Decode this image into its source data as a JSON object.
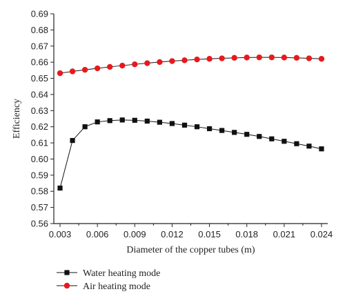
{
  "colors": {
    "water_series": "#111111",
    "air_series": "#e8191d",
    "axis": "#222222"
  },
  "chart_data": {
    "type": "line",
    "title": "",
    "xlabel": "Diameter of the copper tubes (m)",
    "ylabel": "Efficiency",
    "xlim": [
      0.0025,
      0.0245
    ],
    "ylim": [
      0.56,
      0.69
    ],
    "xticks": [
      "0.003",
      "0.006",
      "0.009",
      "0.012",
      "0.015",
      "0.018",
      "0.021",
      "0.024"
    ],
    "yticks": [
      "0.56",
      "0.57",
      "0.58",
      "0.59",
      "0.60",
      "0.61",
      "0.62",
      "0.63",
      "0.64",
      "0.65",
      "0.66",
      "0.67",
      "0.68",
      "0.69"
    ],
    "grid": false,
    "legend_position": "bottom-left",
    "x": [
      0.003,
      0.004,
      0.005,
      0.006,
      0.007,
      0.008,
      0.009,
      0.01,
      0.011,
      0.012,
      0.013,
      0.014,
      0.015,
      0.016,
      0.017,
      0.018,
      0.019,
      0.02,
      0.021,
      0.022,
      0.023,
      0.024
    ],
    "series": [
      {
        "name": "Water heating mode",
        "marker": "square",
        "values": [
          0.582,
          0.6115,
          0.62,
          0.623,
          0.6238,
          0.6242,
          0.624,
          0.6235,
          0.6228,
          0.622,
          0.621,
          0.62,
          0.6188,
          0.6177,
          0.6165,
          0.6153,
          0.614,
          0.6125,
          0.611,
          0.6095,
          0.608,
          0.6063
        ]
      },
      {
        "name": "Air heating mode",
        "marker": "circle",
        "values": [
          0.6532,
          0.6543,
          0.6553,
          0.6562,
          0.6571,
          0.6579,
          0.6587,
          0.6594,
          0.6601,
          0.6607,
          0.6612,
          0.6617,
          0.6621,
          0.6624,
          0.6627,
          0.6629,
          0.663,
          0.663,
          0.6629,
          0.6627,
          0.6624,
          0.6621
        ]
      }
    ]
  }
}
